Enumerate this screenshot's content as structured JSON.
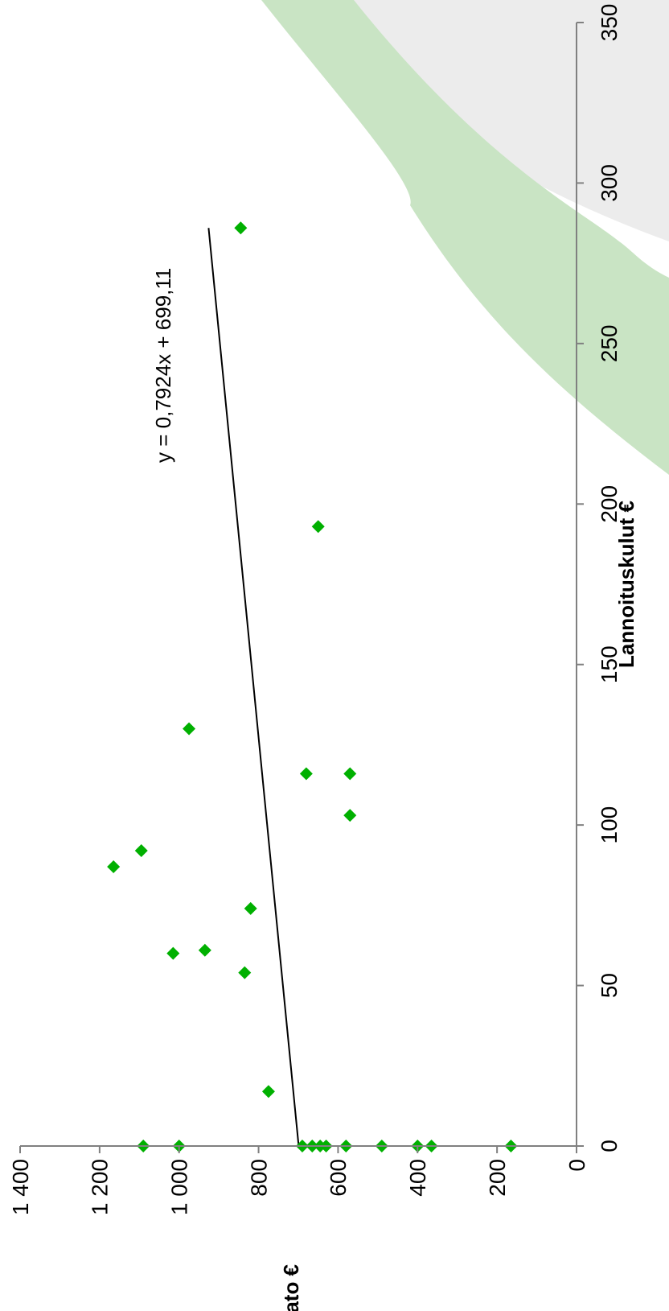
{
  "chart_data": {
    "type": "scatter",
    "orientation": "rotated-90-clockwise",
    "title": "",
    "xlabel": "Lannoituskulut €",
    "ylabel": "Sato €",
    "xlim": [
      0,
      350
    ],
    "ylim": [
      0,
      1400
    ],
    "x_ticks": [
      0,
      50,
      100,
      150,
      200,
      250,
      300,
      350
    ],
    "x_tick_labels": [
      "0",
      "50",
      "100",
      "150",
      "200",
      "250",
      "300",
      "350"
    ],
    "y_ticks": [
      0,
      200,
      400,
      600,
      800,
      1000,
      1200,
      1400
    ],
    "y_tick_labels": [
      "0",
      "200",
      "400",
      "600",
      "800",
      "1 000",
      "1 200",
      "1 400"
    ],
    "grid": false,
    "legend": "none",
    "colors": {
      "marker": "#00b000",
      "trendline": "#000000",
      "axis": "#808080",
      "background_swoosh": "#c9e4c4",
      "background_shadow": "#e6e6e6"
    },
    "series": [
      {
        "marker": "diamond",
        "points": [
          {
            "x": 0,
            "y": 1090
          },
          {
            "x": 0,
            "y": 1000
          },
          {
            "x": 0,
            "y": 690
          },
          {
            "x": 0,
            "y": 665
          },
          {
            "x": 0,
            "y": 645
          },
          {
            "x": 0,
            "y": 630
          },
          {
            "x": 0,
            "y": 580
          },
          {
            "x": 0,
            "y": 490
          },
          {
            "x": 0,
            "y": 400
          },
          {
            "x": 0,
            "y": 365
          },
          {
            "x": 0,
            "y": 165
          },
          {
            "x": 17,
            "y": 775
          },
          {
            "x": 54,
            "y": 835
          },
          {
            "x": 60,
            "y": 1015
          },
          {
            "x": 61,
            "y": 935
          },
          {
            "x": 74,
            "y": 820
          },
          {
            "x": 87,
            "y": 1165
          },
          {
            "x": 92,
            "y": 1095
          },
          {
            "x": 103,
            "y": 570
          },
          {
            "x": 116,
            "y": 680
          },
          {
            "x": 116,
            "y": 570
          },
          {
            "x": 130,
            "y": 975
          },
          {
            "x": 193,
            "y": 650
          },
          {
            "x": 286,
            "y": 845
          }
        ]
      }
    ],
    "trendline": {
      "slope": 0.7924,
      "intercept": 699.11,
      "x_range": [
        0,
        286
      ],
      "equation_label": "y = 0,7924x + 699,11"
    }
  }
}
